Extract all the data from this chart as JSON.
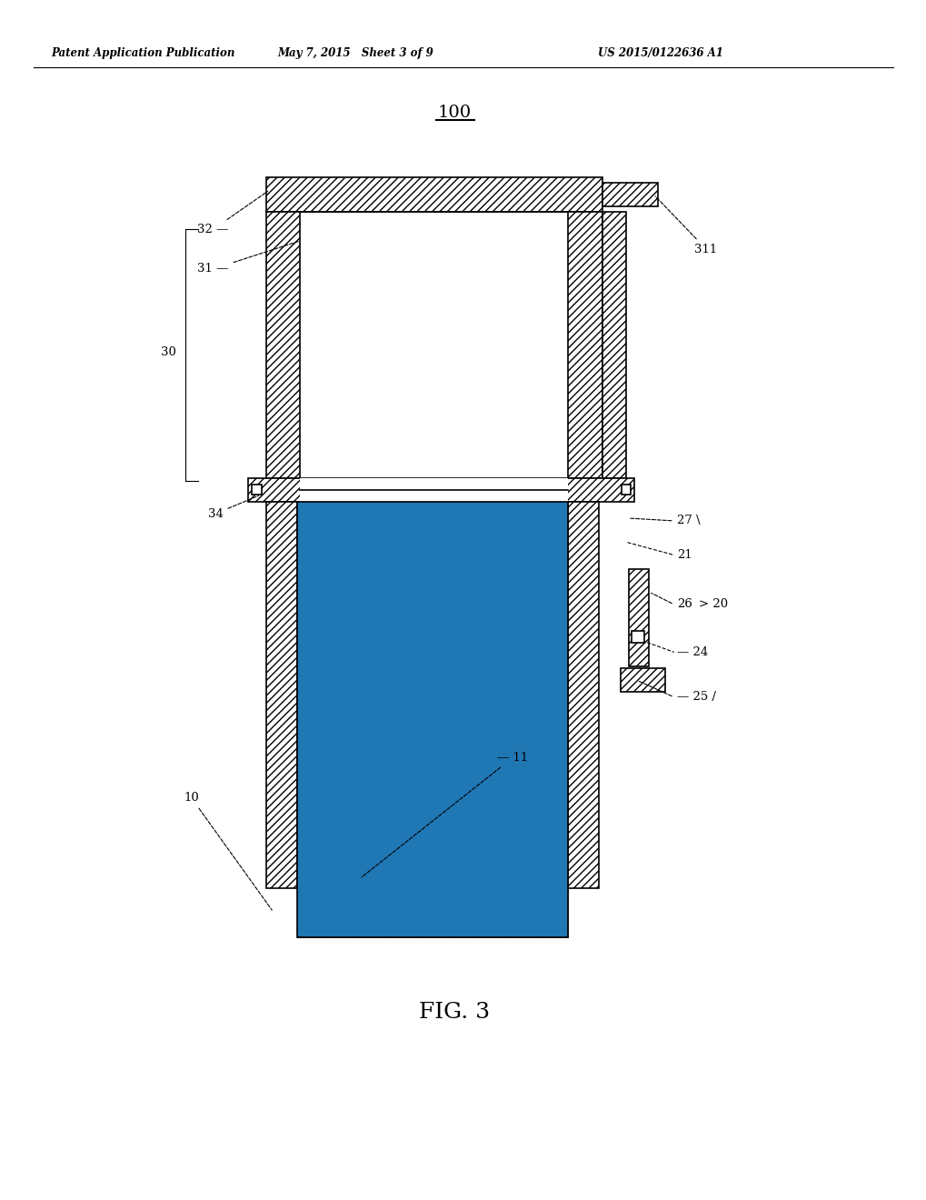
{
  "bg_color": "#ffffff",
  "line_color": "#000000",
  "header_left": "Patent Application Publication",
  "header_mid": "May 7, 2015   Sheet 3 of 9",
  "header_right": "US 2015/0122636 A1",
  "fig_label": "FIG. 3",
  "device_label": "100"
}
